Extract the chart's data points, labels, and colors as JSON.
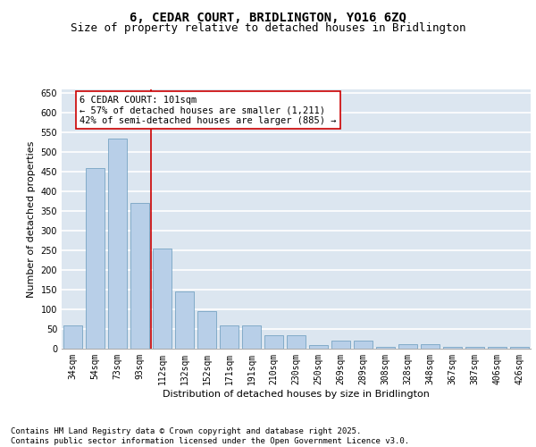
{
  "title1": "6, CEDAR COURT, BRIDLINGTON, YO16 6ZQ",
  "title2": "Size of property relative to detached houses in Bridlington",
  "xlabel": "Distribution of detached houses by size in Bridlington",
  "ylabel": "Number of detached properties",
  "categories": [
    "34sqm",
    "54sqm",
    "73sqm",
    "93sqm",
    "112sqm",
    "132sqm",
    "152sqm",
    "171sqm",
    "191sqm",
    "210sqm",
    "230sqm",
    "250sqm",
    "269sqm",
    "289sqm",
    "308sqm",
    "328sqm",
    "348sqm",
    "367sqm",
    "387sqm",
    "406sqm",
    "426sqm"
  ],
  "values": [
    60,
    460,
    535,
    370,
    255,
    145,
    95,
    60,
    60,
    35,
    35,
    10,
    20,
    20,
    5,
    12,
    12,
    5,
    5,
    5,
    5
  ],
  "bar_color": "#b8cfe8",
  "bar_edge_color": "#6699bb",
  "bar_linewidth": 0.5,
  "vline_color": "#cc0000",
  "vline_label": "6 CEDAR COURT: 101sqm",
  "annotation_line1": "← 57% of detached houses are smaller (1,211)",
  "annotation_line2": "42% of semi-detached houses are larger (885) →",
  "box_edge_color": "#cc0000",
  "ylim": [
    0,
    660
  ],
  "yticks": [
    0,
    50,
    100,
    150,
    200,
    250,
    300,
    350,
    400,
    450,
    500,
    550,
    600,
    650
  ],
  "bg_color": "#dce6f0",
  "grid_color": "#ffffff",
  "footer_line1": "Contains HM Land Registry data © Crown copyright and database right 2025.",
  "footer_line2": "Contains public sector information licensed under the Open Government Licence v3.0.",
  "title1_fontsize": 10,
  "title2_fontsize": 9,
  "axis_label_fontsize": 8,
  "tick_fontsize": 7,
  "annotation_fontsize": 7.5,
  "footer_fontsize": 6.5
}
